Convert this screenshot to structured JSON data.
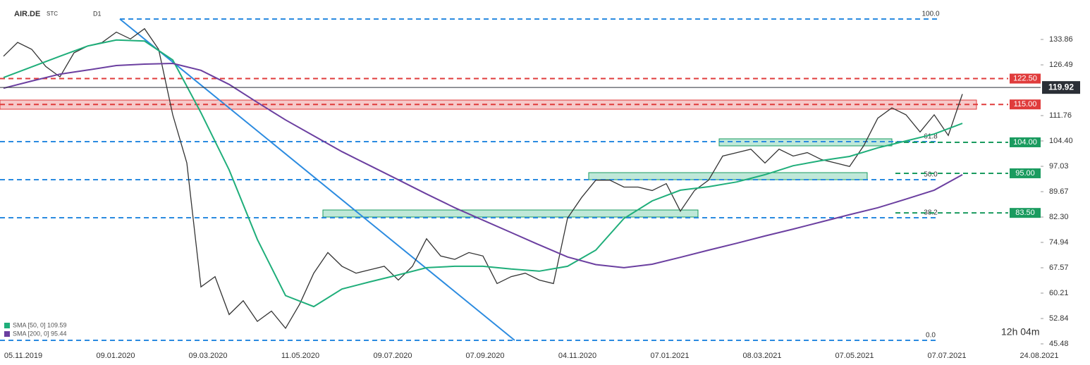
{
  "chart_data": {
    "type": "line",
    "symbol": "AIR.DE",
    "exchange": "STC",
    "interval": "D1",
    "timer": "12h 04m",
    "ylim": [
      45.07,
      145.32
    ],
    "yticks": [
      133.86,
      126.49,
      111.76,
      {
        "value": 104.4,
        "label": "104.40"
      },
      97.03,
      89.67,
      {
        "value": 82.3,
        "label": "82.30"
      },
      74.94,
      67.57,
      60.21,
      52.84,
      45.48
    ],
    "x_labels": [
      "05.11.2019",
      "09.01.2020",
      "09.03.2020",
      "11.05.2020",
      "09.07.2020",
      "07.09.2020",
      "04.11.2020",
      "07.01.2021",
      "08.03.2021",
      "07.05.2021",
      "07.07.2021",
      "24.08.2021"
    ],
    "series": [
      {
        "name": "AIR.DE",
        "color": "#333333",
        "values": [
          129,
          133,
          131,
          126,
          123,
          130,
          132,
          133,
          136,
          134,
          137,
          131,
          112,
          98,
          62,
          65,
          54,
          58,
          52,
          55,
          50,
          57,
          66,
          72,
          68,
          66,
          67,
          68,
          64,
          68,
          76,
          71,
          70,
          72,
          71,
          63,
          65,
          66,
          64,
          63,
          82,
          88,
          93,
          93,
          91,
          91,
          90,
          92,
          84,
          90,
          93,
          100,
          101,
          102,
          98,
          102,
          100,
          101,
          99,
          98,
          97,
          103,
          111,
          114,
          112,
          107,
          112,
          106,
          118
        ]
      },
      {
        "name": "SMA [50, 0] 109.59",
        "color": "#1fae7a",
        "values": [
          122.8,
          125.9,
          129,
          132,
          133.7,
          133.4,
          127.9,
          112.6,
          96,
          75.8,
          59.5,
          56.3,
          61.4,
          63.5,
          65.5,
          67.6,
          68,
          68,
          67.2,
          66.6,
          68,
          72.7,
          81.9,
          87,
          90.1,
          91.1,
          92.5,
          94.6,
          97.2,
          98.7,
          99.9,
          102.4,
          104.4,
          106.4,
          109.5
        ]
      },
      {
        "name": "SMA [200, 0] 95.44",
        "color": "#6b3fa0",
        "values": [
          119.7,
          121.8,
          123.8,
          125,
          126.3,
          126.7,
          126.9,
          124.9,
          120.8,
          115.6,
          110.5,
          105.9,
          101.3,
          97.2,
          93.1,
          89,
          85,
          81.4,
          77.8,
          74.2,
          70.7,
          68.5,
          67.6,
          68.6,
          70.6,
          72.7,
          74.7,
          76.8,
          78.8,
          80.9,
          83,
          85,
          87.5,
          90.1,
          94.6
        ]
      }
    ],
    "levels": [
      {
        "value": 122.5,
        "label": "122.50",
        "color": "#e03c3c"
      },
      {
        "value": 115,
        "label": "115.00",
        "color": "#e03c3c"
      },
      {
        "value": 104,
        "label": "104.00",
        "color": "#1a9b5f"
      },
      {
        "value": 95,
        "label": "95.00",
        "color": "#1a9b5f"
      },
      {
        "value": 83.5,
        "label": "83.50",
        "color": "#1a9b5f"
      }
    ],
    "last_price": {
      "value": 119.92,
      "label": "119.92",
      "color": "#2b2f36"
    },
    "fib_levels": [
      {
        "ratio_label": "100.0",
        "price": 139.8
      },
      {
        "ratio_label": "61.8",
        "price": 104.2
      },
      {
        "ratio_label": "50.0",
        "price": 93.15
      },
      {
        "ratio_label": "38.2",
        "price": 82.1
      },
      {
        "ratio_label": "0.0",
        "price": 46.5
      }
    ],
    "fib_color": "#2b8be0"
  }
}
